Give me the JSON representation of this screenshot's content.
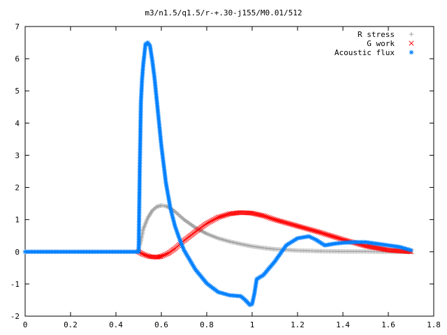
{
  "chart_data": {
    "type": "scatter",
    "title": "m3/n1.5/q1.5/r-+.30-j155/M0.01/512",
    "xlabel": "",
    "ylabel": "",
    "xlim": [
      0,
      1.8
    ],
    "ylim": [
      -2,
      7
    ],
    "xticks": [
      "0",
      "0.2",
      "0.4",
      "0.6",
      "0.8",
      "1",
      "1.2",
      "1.4",
      "1.6",
      "1.8"
    ],
    "yticks": [
      "-2",
      "-1",
      "0",
      "1",
      "2",
      "3",
      "4",
      "5",
      "6",
      "7"
    ],
    "grid": false,
    "legend_position": "top-right",
    "series": [
      {
        "name": "R stress",
        "marker": "plus-icon",
        "color": "#a0a0a0",
        "x": [
          0.0,
          0.5,
          0.5,
          0.51,
          0.52,
          0.54,
          0.56,
          0.58,
          0.6,
          0.62,
          0.64,
          0.66,
          0.7,
          0.75,
          0.8,
          0.85,
          0.9,
          0.95,
          1.0,
          1.05,
          1.1,
          1.2,
          1.3,
          1.4,
          1.5,
          1.6,
          1.7
        ],
        "y": [
          0.0,
          0.0,
          0.1,
          0.35,
          0.7,
          1.05,
          1.28,
          1.4,
          1.44,
          1.42,
          1.36,
          1.25,
          1.0,
          0.75,
          0.56,
          0.42,
          0.32,
          0.24,
          0.17,
          0.12,
          0.08,
          0.04,
          0.02,
          0.01,
          0.01,
          0.0,
          0.0
        ]
      },
      {
        "name": "G work",
        "marker": "cross-icon",
        "color": "#ff0000",
        "x": [
          0.5,
          0.52,
          0.55,
          0.58,
          0.6,
          0.63,
          0.66,
          0.7,
          0.75,
          0.8,
          0.85,
          0.9,
          0.95,
          1.0,
          1.05,
          1.1,
          1.2,
          1.3,
          1.4,
          1.5,
          1.6,
          1.7
        ],
        "y": [
          0.0,
          -0.08,
          -0.15,
          -0.17,
          -0.14,
          -0.05,
          0.1,
          0.35,
          0.62,
          0.88,
          1.07,
          1.18,
          1.22,
          1.2,
          1.12,
          1.0,
          0.8,
          0.6,
          0.38,
          0.18,
          0.05,
          0.0
        ]
      },
      {
        "name": "Acoustic flux",
        "marker": "star-icon",
        "color": "#0080ff",
        "x": [
          0.0,
          0.5,
          0.505,
          0.51,
          0.515,
          0.52,
          0.53,
          0.54,
          0.55,
          0.56,
          0.57,
          0.58,
          0.6,
          0.62,
          0.64,
          0.66,
          0.68,
          0.7,
          0.75,
          0.8,
          0.85,
          0.9,
          0.95,
          0.97,
          0.99,
          1.0,
          1.01,
          1.02,
          1.05,
          1.1,
          1.15,
          1.2,
          1.25,
          1.28,
          1.32,
          1.36,
          1.4,
          1.45,
          1.5,
          1.55,
          1.6,
          1.65,
          1.7
        ],
        "y": [
          0.0,
          0.0,
          2.6,
          4.65,
          5.35,
          5.8,
          6.45,
          6.5,
          6.4,
          5.95,
          5.4,
          4.7,
          3.3,
          2.15,
          1.35,
          0.8,
          0.4,
          0.05,
          -0.55,
          -0.98,
          -1.25,
          -1.35,
          -1.38,
          -1.5,
          -1.65,
          -1.62,
          -1.3,
          -0.85,
          -0.72,
          -0.3,
          0.2,
          0.42,
          0.48,
          0.38,
          0.2,
          0.25,
          0.28,
          0.3,
          0.3,
          0.25,
          0.2,
          0.15,
          0.05
        ]
      }
    ]
  }
}
